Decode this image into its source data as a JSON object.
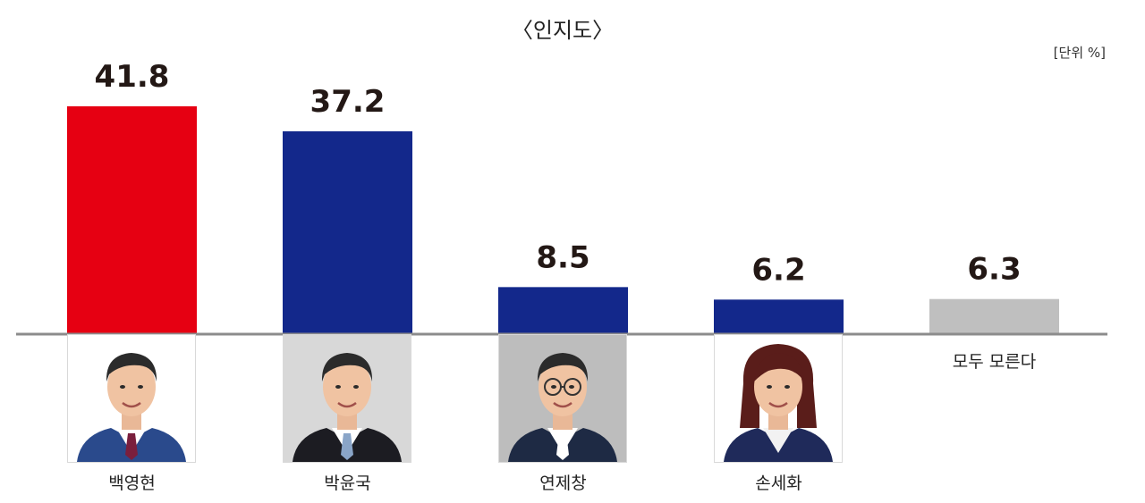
{
  "title": "〈인지도〉",
  "unit": "[단위 %]",
  "chart_data": {
    "type": "bar",
    "categories": [
      "백영현",
      "박윤국",
      "연제창",
      "손세화",
      "모두 모른다"
    ],
    "values": [
      41.8,
      37.2,
      8.5,
      6.2,
      6.3
    ],
    "value_labels": [
      "41.8",
      "37.2",
      "8.5",
      "6.2",
      "6.3"
    ],
    "colors": [
      "#e60012",
      "#13288b",
      "#13288b",
      "#13288b",
      "#bfbfbf"
    ],
    "ylim": [
      0,
      41.8
    ],
    "grid": false,
    "legend": "none"
  },
  "photos": [
    {
      "name": "백영현",
      "icon": "person-photo-man-grey-hair",
      "bg": "#ffffff",
      "suit": "#2a4a8c",
      "tie": "#7a1f3d"
    },
    {
      "name": "박윤국",
      "icon": "person-photo-man-dark-hair",
      "bg": "#d8d8d8",
      "suit": "#1c1c22",
      "tie": "#8aa5c8"
    },
    {
      "name": "연제창",
      "icon": "person-photo-man-glasses",
      "bg": "#bdbdbd",
      "suit": "#1e2a44",
      "tie": "#ffffff"
    },
    {
      "name": "손세화",
      "icon": "person-photo-woman",
      "bg": "#ffffff",
      "suit": "#1f2a5a",
      "tie": "#ffffff"
    }
  ]
}
